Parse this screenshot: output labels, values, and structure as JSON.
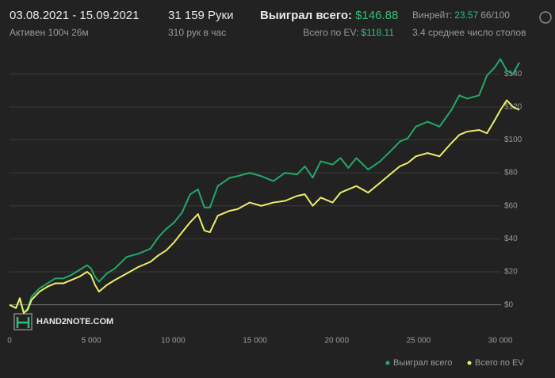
{
  "header": {
    "period": "03.08.2021 - 15.09.2021",
    "active": "Активен 100ч 26м",
    "hands": "31 159 Руки",
    "hands_per_hour": "310 рук в час",
    "won_label": "Выиграл всего:",
    "won_value": "$146.88",
    "ev_label": "Всего по EV:",
    "ev_value": "$118.11",
    "winrate_label": "Винрейт:",
    "winrate_value": "23.57",
    "winrate_extra": "66/100",
    "tables": "3.4 среднее число столов",
    "watermark": "HAND2NOTE.COM"
  },
  "chart_data": {
    "type": "line",
    "x": [
      0,
      390,
      630,
      870,
      1110,
      1350,
      1840,
      2320,
      2800,
      3290,
      3770,
      4260,
      4740,
      4980,
      5230,
      5470,
      5950,
      6440,
      7160,
      7890,
      8610,
      9100,
      9580,
      10070,
      10550,
      11040,
      11520,
      11910,
      12250,
      12730,
      13460,
      13940,
      14670,
      15390,
      16120,
      16840,
      17570,
      18050,
      18530,
      19020,
      19740,
      20230,
      20710,
      21200,
      21920,
      22650,
      23370,
      23860,
      24340,
      24830,
      25550,
      26280,
      27000,
      27490,
      27970,
      28700,
      29180,
      29660,
      30000,
      30390,
      30770,
      31159
    ],
    "series": [
      {
        "name": "Выиграл всего",
        "color": "#23a86b",
        "values": [
          0,
          -2,
          3,
          -5,
          -2,
          5,
          10,
          13,
          16,
          16,
          18,
          21,
          24,
          22,
          17,
          14,
          19,
          22,
          29,
          31,
          34,
          41,
          46,
          50,
          56,
          67,
          70,
          59,
          59,
          72,
          77,
          78,
          80,
          78,
          75,
          80,
          79,
          84,
          77,
          87,
          85,
          89,
          83,
          89,
          82,
          87,
          94,
          99,
          101,
          108,
          111,
          108,
          118,
          127,
          125,
          127,
          139,
          144,
          149,
          142,
          140,
          146.88
        ]
      },
      {
        "name": "Всего по EV",
        "color": "#eeee6a",
        "values": [
          0,
          -2,
          4,
          -5,
          -3,
          3,
          8,
          11,
          13,
          13,
          15,
          17,
          20,
          18,
          12,
          8,
          12,
          15,
          19,
          23,
          26,
          30,
          33,
          38,
          44,
          50,
          55,
          45,
          44,
          54,
          57,
          58,
          62,
          60,
          62,
          63,
          66,
          67,
          60,
          65,
          62,
          68,
          70,
          72,
          68,
          74,
          80,
          84,
          86,
          90,
          92,
          90,
          98,
          103,
          105,
          106,
          104,
          112,
          118,
          124,
          120,
          118.11
        ]
      }
    ],
    "xlim": [
      0,
      31400
    ],
    "ylim": [
      -17,
      155
    ],
    "xticks": [
      0,
      {
        "value": 5000,
        "label": "5 000"
      },
      {
        "value": 10000,
        "label": "10 000"
      },
      {
        "value": 15000,
        "label": "15 000"
      },
      {
        "value": 20000,
        "label": "20 000"
      },
      {
        "value": 25000,
        "label": "25 000"
      },
      {
        "value": 30000,
        "label": "30 000"
      }
    ],
    "yticks": [
      {
        "value": 0,
        "label": "$0"
      },
      {
        "value": 20,
        "label": "$20"
      },
      {
        "value": 40,
        "label": "$40"
      },
      {
        "value": 60,
        "label": "$60"
      },
      {
        "value": 80,
        "label": "$80"
      },
      {
        "value": 100,
        "label": "$100"
      },
      {
        "value": 120,
        "label": "$120"
      },
      {
        "value": 140,
        "label": "$140"
      }
    ],
    "grid": true
  }
}
